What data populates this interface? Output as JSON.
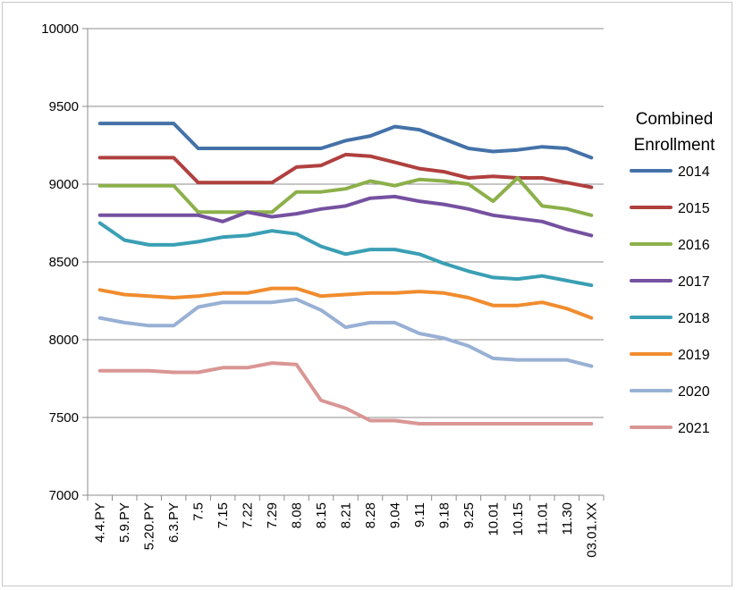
{
  "chart_data": {
    "type": "line",
    "title": "",
    "xlabel": "",
    "ylabel": "",
    "ylim": [
      7000,
      10000
    ],
    "yticks": [
      7000,
      7500,
      8000,
      8500,
      9000,
      9500,
      10000
    ],
    "grid": "horizontal",
    "legend_title_lines": [
      "Combined",
      "Enrollment"
    ],
    "legend_position": "right",
    "categories": [
      "4.4.PY",
      "5.9.PY",
      "5.20.PY",
      "6.3.PY",
      "7.5",
      "7.15",
      "7.22",
      "7.29",
      "8.08",
      "8.15",
      "8.21",
      "8.28",
      "9.04",
      "9.11",
      "9.18",
      "9.25",
      "10.01",
      "10.15",
      "11.01",
      "11.30",
      "03.01.XX"
    ],
    "series": [
      {
        "name": "2014",
        "color": "#4472a8",
        "values": [
          9390,
          9390,
          9390,
          9390,
          9230,
          9230,
          9230,
          9230,
          9230,
          9230,
          9280,
          9310,
          9370,
          9350,
          9290,
          9230,
          9210,
          9220,
          9240,
          9230,
          9170
        ]
      },
      {
        "name": "2015",
        "color": "#b0403e",
        "values": [
          9170,
          9170,
          9170,
          9170,
          9010,
          9010,
          9010,
          9010,
          9110,
          9120,
          9190,
          9180,
          9140,
          9100,
          9080,
          9040,
          9050,
          9040,
          9040,
          9010,
          8980
        ]
      },
      {
        "name": "2016",
        "color": "#8cb04a",
        "values": [
          8990,
          8990,
          8990,
          8990,
          8820,
          8820,
          8820,
          8820,
          8950,
          8950,
          8970,
          9020,
          8990,
          9030,
          9020,
          9000,
          8890,
          9040,
          8860,
          8840,
          8800
        ]
      },
      {
        "name": "2017",
        "color": "#7551a0",
        "values": [
          8800,
          8800,
          8800,
          8800,
          8800,
          8760,
          8820,
          8790,
          8810,
          8840,
          8860,
          8910,
          8920,
          8890,
          8870,
          8840,
          8800,
          8780,
          8760,
          8710,
          8670
        ]
      },
      {
        "name": "2018",
        "color": "#3a9fb4",
        "values": [
          8750,
          8640,
          8610,
          8610,
          8630,
          8660,
          8670,
          8700,
          8680,
          8600,
          8550,
          8580,
          8580,
          8550,
          8490,
          8440,
          8400,
          8390,
          8410,
          8380,
          8350
        ]
      },
      {
        "name": "2019",
        "color": "#f08c2e",
        "values": [
          8320,
          8290,
          8280,
          8270,
          8280,
          8300,
          8300,
          8330,
          8330,
          8280,
          8290,
          8300,
          8300,
          8310,
          8300,
          8270,
          8220,
          8220,
          8240,
          8200,
          8140
        ]
      },
      {
        "name": "2020",
        "color": "#98b0d4",
        "values": [
          8140,
          8110,
          8090,
          8090,
          8210,
          8240,
          8240,
          8240,
          8260,
          8190,
          8080,
          8110,
          8110,
          8040,
          8010,
          7960,
          7880,
          7870,
          7870,
          7870,
          7830
        ]
      },
      {
        "name": "2021",
        "color": "#d99694",
        "values": [
          7800,
          7800,
          7800,
          7790,
          7790,
          7820,
          7820,
          7850,
          7840,
          7610,
          7560,
          7480,
          7480,
          7460,
          7460,
          7460,
          7460,
          7460,
          7460,
          7460,
          7460
        ]
      }
    ]
  }
}
